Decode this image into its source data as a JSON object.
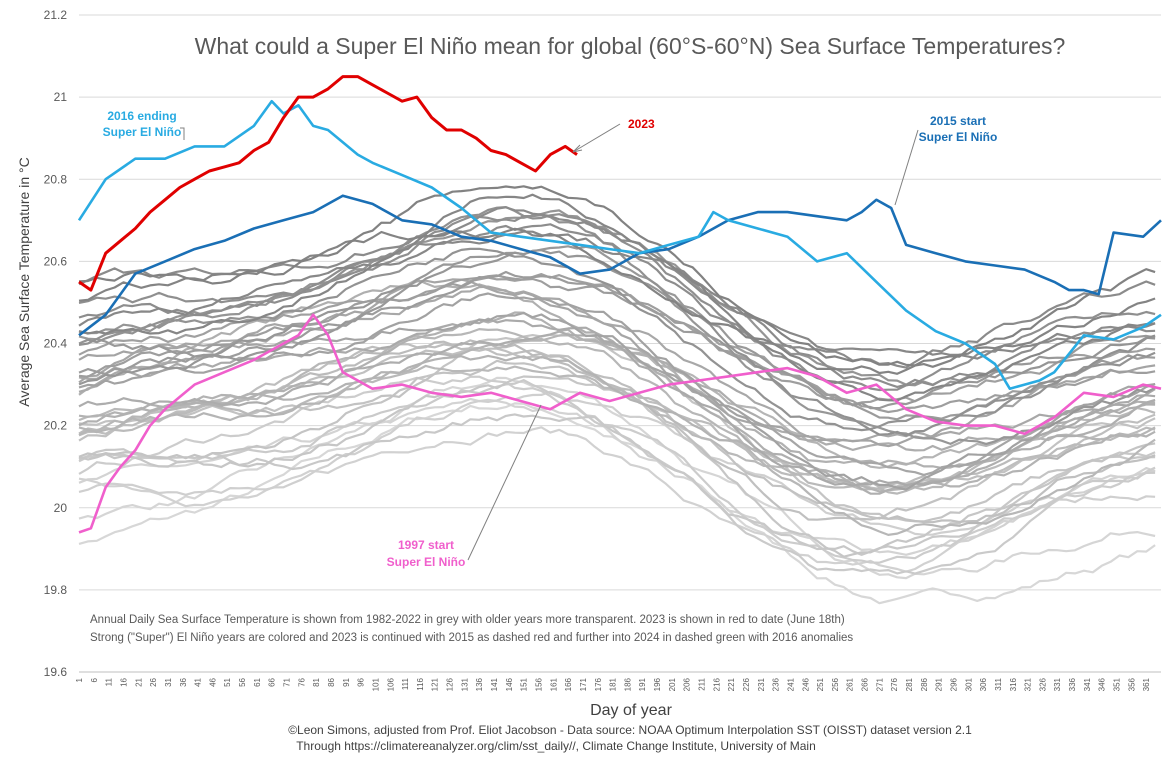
{
  "chart_data": {
    "type": "line",
    "title": "What could a Super El Niño mean for global (60°S-60°N) Sea Surface Temperatures?",
    "xlabel": "Day of year",
    "ylabel": "Average Sea Surface Temperature in °C",
    "xlim": [
      1,
      366
    ],
    "ylim": [
      19.6,
      21.2
    ],
    "yticks": [
      19.6,
      19.8,
      20,
      20.2,
      20.4,
      20.6,
      20.8,
      21,
      21.2
    ],
    "ytick_labels": [
      "19.6",
      "19.8",
      "20",
      "20.2",
      "20.4",
      "20.6",
      "20.8",
      "21",
      "21.2"
    ],
    "xticks": [
      1,
      6,
      11,
      16,
      21,
      26,
      31,
      36,
      41,
      46,
      51,
      56,
      61,
      66,
      71,
      76,
      81,
      86,
      91,
      96,
      101,
      106,
      111,
      116,
      121,
      126,
      131,
      136,
      141,
      146,
      151,
      156,
      161,
      166,
      171,
      176,
      181,
      186,
      191,
      196,
      201,
      206,
      211,
      216,
      221,
      226,
      231,
      236,
      241,
      246,
      251,
      256,
      261,
      266,
      271,
      276,
      281,
      286,
      291,
      296,
      301,
      306,
      311,
      316,
      321,
      326,
      331,
      336,
      341,
      346,
      351,
      356,
      361
    ],
    "grid": true,
    "notes": [
      "Annual Daily Sea Surface Temperature is shown from 1982-2022 in grey with older years more transparent. 2023 is shown in red to date (June 18th)",
      "Strong (\"Super\") El Niño years are colored and 2023 is continued with 2015  as dashed red and further into 2024 in dashed green with 2016 anomalies"
    ],
    "credits": [
      "©Leon Simons, adjusted from Prof. Eliot Jacobson - Data source: NOAA Optimum Interpolation SST (OISST) dataset version 2.1",
      "Through https://climatereanalyzer.org/clim/sst_daily//, Climate Change Institute, University of Main"
    ],
    "annotations": [
      {
        "text": "2016 ending",
        "color": "#29abe2"
      },
      {
        "text": "Super El Niño",
        "color": "#29abe2"
      },
      {
        "text": "2023",
        "color": "#e00000"
      },
      {
        "text": "2015 start",
        "color": "#1a6fb5"
      },
      {
        "text": "Super El Niño",
        "color": "#1a6fb5"
      },
      {
        "text": "1997 start",
        "color": "#f05fcc"
      },
      {
        "text": "Super El Niño",
        "color": "#f05fcc"
      }
    ],
    "highlight_series": [
      {
        "name": "2023",
        "color": "#e00000",
        "x": [
          1,
          5,
          10,
          15,
          20,
          25,
          30,
          35,
          40,
          45,
          50,
          55,
          60,
          65,
          70,
          75,
          80,
          85,
          90,
          95,
          100,
          105,
          110,
          115,
          120,
          125,
          130,
          135,
          140,
          145,
          150,
          155,
          160,
          165,
          169
        ],
        "y": [
          20.55,
          20.53,
          20.62,
          20.65,
          20.68,
          20.72,
          20.75,
          20.78,
          20.8,
          20.82,
          20.83,
          20.84,
          20.87,
          20.89,
          20.95,
          21.0,
          21.0,
          21.02,
          21.05,
          21.05,
          21.03,
          21.01,
          20.99,
          21.0,
          20.95,
          20.92,
          20.92,
          20.9,
          20.87,
          20.86,
          20.84,
          20.82,
          20.86,
          20.88,
          20.86
        ]
      },
      {
        "name": "2016",
        "color": "#29abe2",
        "x": [
          1,
          10,
          20,
          30,
          40,
          50,
          60,
          66,
          70,
          75,
          80,
          85,
          90,
          95,
          100,
          110,
          120,
          130,
          140,
          150,
          160,
          170,
          180,
          190,
          200,
          210,
          215,
          220,
          230,
          240,
          250,
          260,
          270,
          280,
          290,
          300,
          310,
          315,
          320,
          325,
          330,
          340,
          350,
          360,
          366
        ],
        "y": [
          20.7,
          20.8,
          20.85,
          20.85,
          20.88,
          20.88,
          20.93,
          20.99,
          20.96,
          20.98,
          20.93,
          20.92,
          20.89,
          20.86,
          20.84,
          20.81,
          20.78,
          20.73,
          20.67,
          20.66,
          20.65,
          20.64,
          20.63,
          20.62,
          20.64,
          20.66,
          20.72,
          20.7,
          20.68,
          20.66,
          20.6,
          20.62,
          20.55,
          20.48,
          20.43,
          20.4,
          20.35,
          20.29,
          20.3,
          20.31,
          20.33,
          20.42,
          20.41,
          20.44,
          20.47
        ]
      },
      {
        "name": "2015",
        "color": "#1a6fb5",
        "x": [
          1,
          10,
          20,
          30,
          40,
          50,
          60,
          70,
          80,
          90,
          100,
          110,
          120,
          130,
          140,
          150,
          160,
          170,
          180,
          190,
          200,
          210,
          220,
          230,
          240,
          250,
          260,
          265,
          270,
          275,
          280,
          290,
          300,
          310,
          320,
          330,
          335,
          340,
          345,
          350,
          360,
          366
        ],
        "y": [
          20.42,
          20.47,
          20.57,
          20.6,
          20.63,
          20.65,
          20.68,
          20.7,
          20.72,
          20.76,
          20.74,
          20.7,
          20.69,
          20.66,
          20.65,
          20.63,
          20.61,
          20.57,
          20.58,
          20.62,
          20.63,
          20.66,
          20.7,
          20.72,
          20.72,
          20.71,
          20.7,
          20.72,
          20.75,
          20.73,
          20.64,
          20.62,
          20.6,
          20.59,
          20.58,
          20.55,
          20.53,
          20.53,
          20.52,
          20.67,
          20.66,
          20.7
        ]
      },
      {
        "name": "1997",
        "color": "#f05fcc",
        "x": [
          1,
          5,
          10,
          15,
          20,
          25,
          30,
          35,
          40,
          50,
          60,
          70,
          75,
          80,
          85,
          90,
          100,
          110,
          120,
          130,
          140,
          150,
          160,
          170,
          180,
          190,
          200,
          210,
          220,
          230,
          240,
          250,
          260,
          270,
          280,
          290,
          300,
          310,
          320,
          330,
          340,
          350,
          360,
          366
        ],
        "y": [
          19.94,
          19.95,
          20.05,
          20.1,
          20.14,
          20.2,
          20.24,
          20.27,
          20.3,
          20.33,
          20.36,
          20.4,
          20.42,
          20.47,
          20.42,
          20.33,
          20.29,
          20.3,
          20.28,
          20.27,
          20.28,
          20.26,
          20.24,
          20.28,
          20.26,
          20.28,
          20.3,
          20.31,
          20.32,
          20.33,
          20.34,
          20.32,
          20.28,
          20.3,
          20.24,
          20.21,
          20.2,
          20.2,
          20.18,
          20.22,
          20.28,
          20.27,
          20.3,
          20.29
        ]
      }
    ]
  }
}
